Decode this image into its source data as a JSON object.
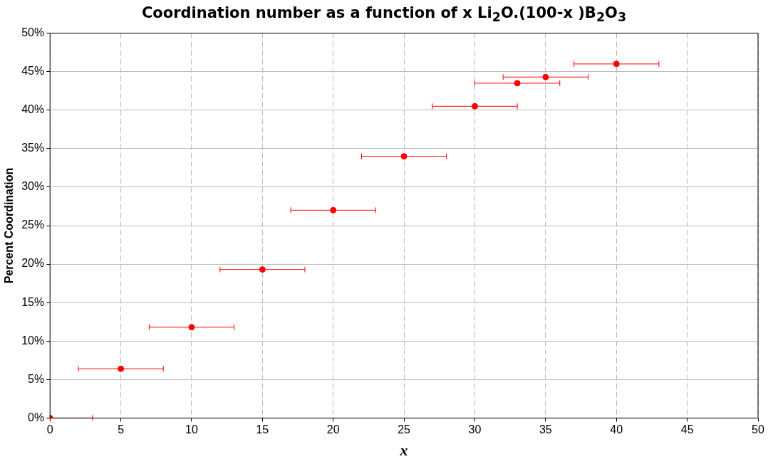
{
  "chart_data": {
    "type": "scatter",
    "title": "Coordination number as a function of x Li$_{2}$O.(100-x )B$_{2}$O$_{3}$",
    "xlabel": "x",
    "ylabel": "Percent Coordination",
    "x": [
      0,
      5,
      10,
      15,
      20,
      25,
      30,
      33,
      35,
      40
    ],
    "series": [
      {
        "color": "#ff0000",
        "values": [
          0,
          6.4,
          11.8,
          19.3,
          27.0,
          34.0,
          40.5,
          43.5,
          44.3,
          46.0
        ],
        "xerrors": [
          [
            0,
            3
          ],
          3,
          3,
          3,
          3,
          3,
          3,
          3,
          3,
          3
        ]
      }
    ],
    "xlim": [
      0,
      50
    ],
    "xticks": [
      0,
      5,
      10,
      15,
      20,
      25,
      30,
      35,
      40,
      45,
      50
    ],
    "ylim": [
      0,
      50
    ],
    "yticks": [
      {
        "value": 0,
        "label": "0%"
      },
      {
        "value": 5,
        "label": "5%"
      },
      {
        "value": 10,
        "label": "10%"
      },
      {
        "value": 15,
        "label": "15%"
      },
      {
        "value": 20,
        "label": "20%"
      },
      {
        "value": 25,
        "label": "25%"
      },
      {
        "value": 30,
        "label": "30%"
      },
      {
        "value": 35,
        "label": "35%"
      },
      {
        "value": 40,
        "label": "40%"
      },
      {
        "value": 45,
        "label": "45%"
      },
      {
        "value": 50,
        "label": "50%"
      }
    ],
    "grid": true,
    "legend": false,
    "marker": "circle"
  }
}
